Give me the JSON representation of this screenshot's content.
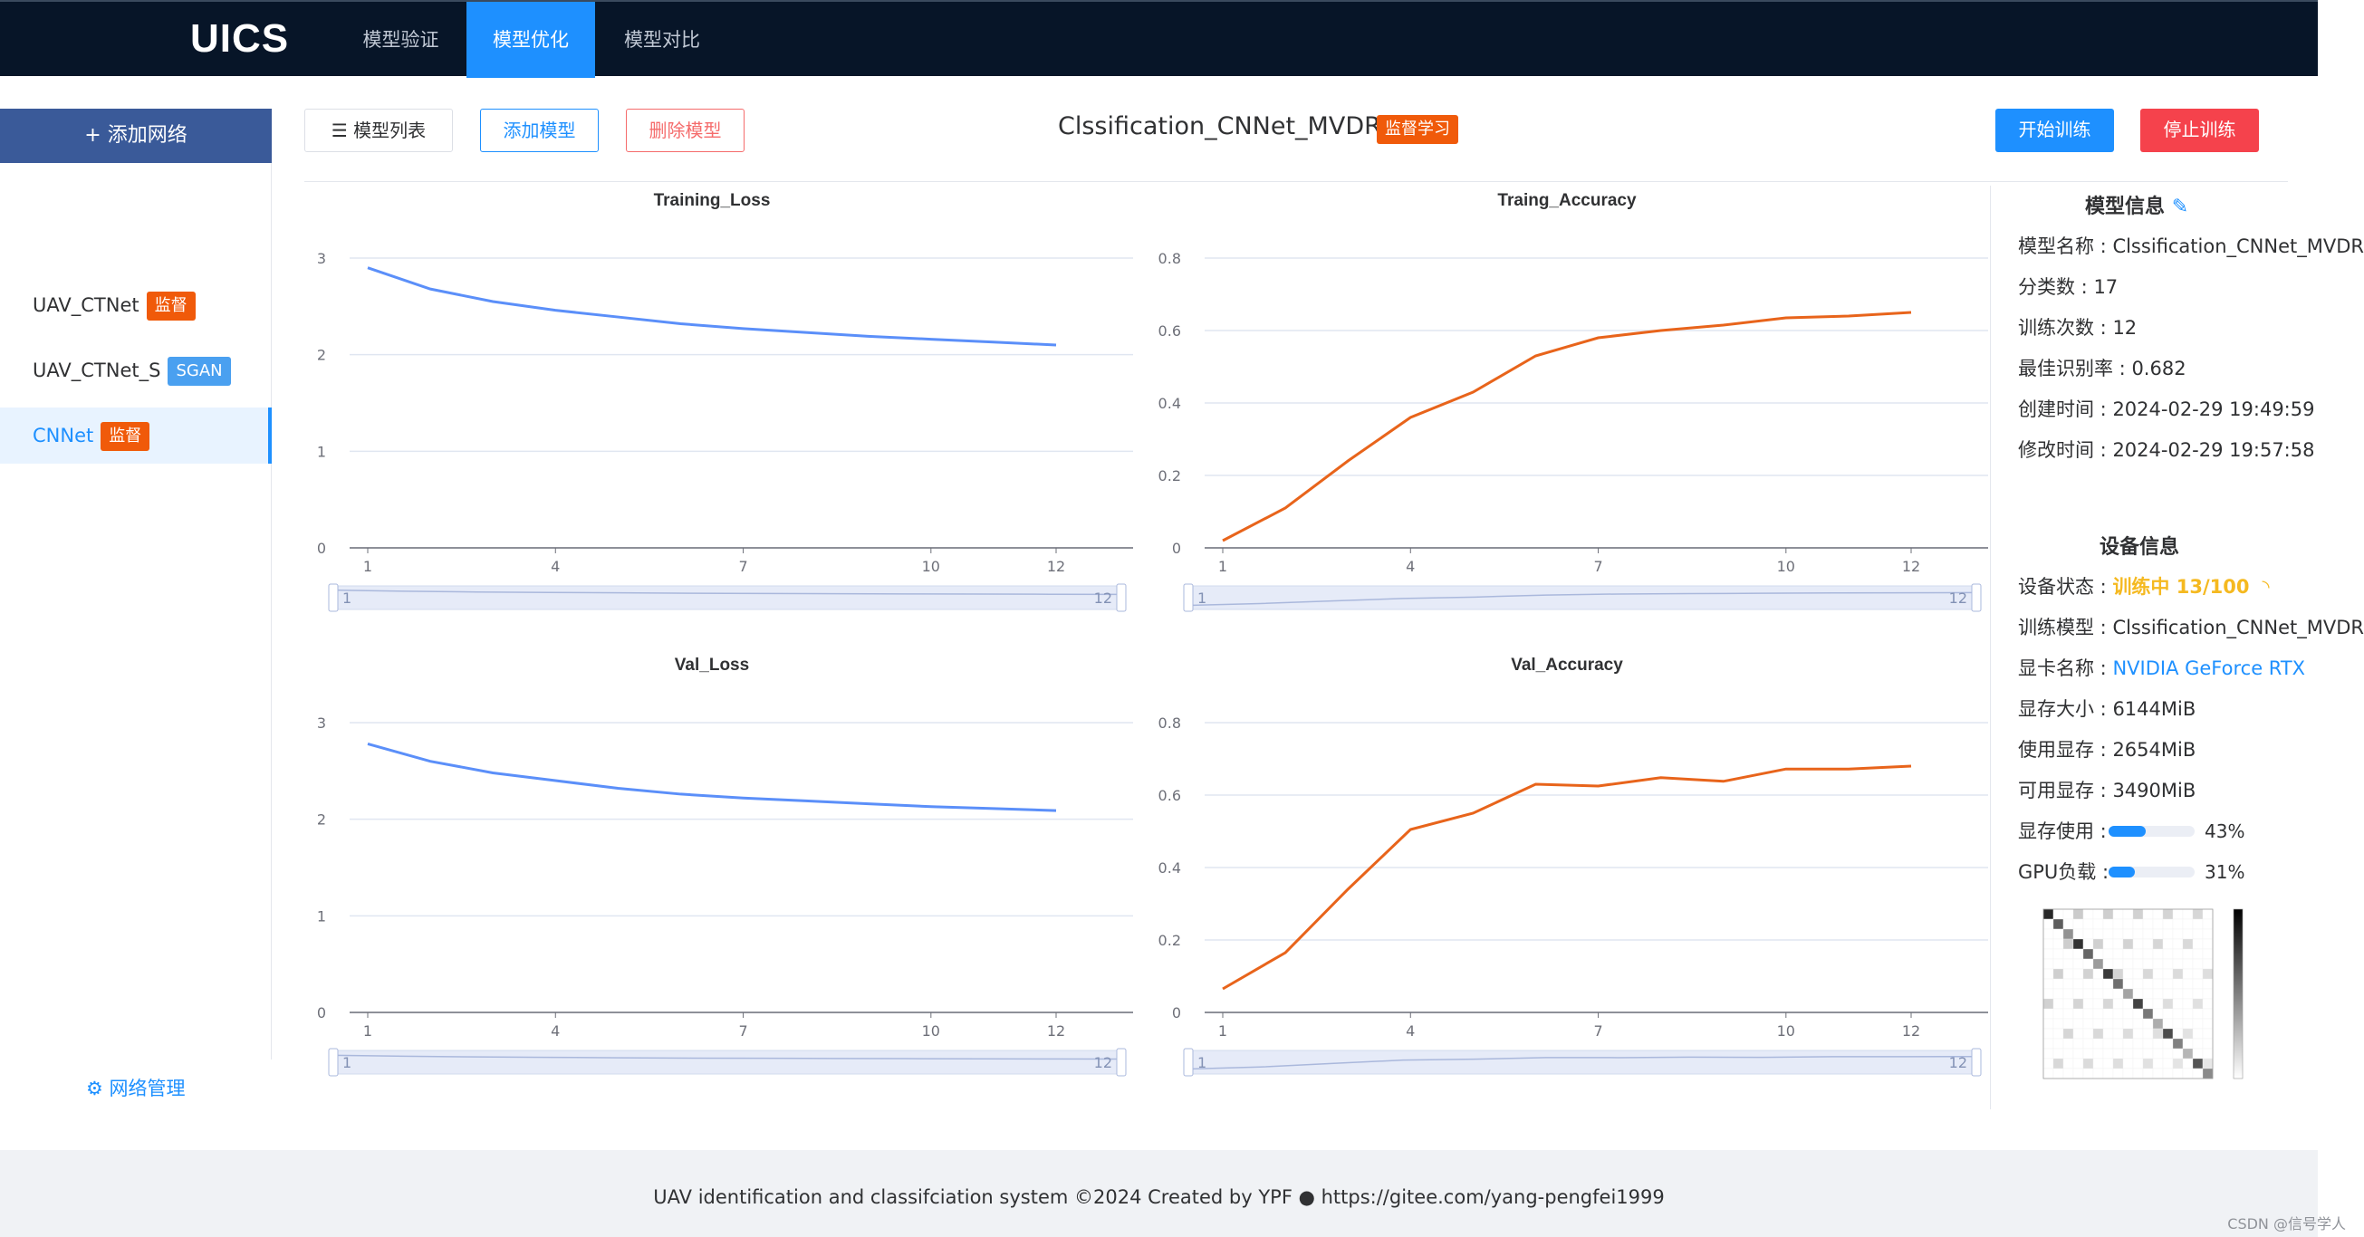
{
  "app": {
    "logo": "UICS",
    "nav_tabs": [
      {
        "label": "模型验证"
      },
      {
        "label": "模型优化"
      },
      {
        "label": "模型对比"
      }
    ]
  },
  "sidebar": {
    "add_label": "+ 添加网络",
    "items": [
      {
        "name": "UAV_CTNet",
        "tag": "监督"
      },
      {
        "name": "UAV_CTNet_S",
        "tag": "SGAN"
      },
      {
        "name": "CNNet",
        "tag": "监督"
      }
    ],
    "manage_label": "网络管理"
  },
  "toolbar": {
    "list_label": "模型列表",
    "add_label": "添加模型",
    "delete_label": "删除模型",
    "start_label": "开始训练",
    "stop_label": "停止训练",
    "model_title": "Clssification_CNNet_MVDR",
    "model_tag": "监督学习"
  },
  "chart_data": [
    {
      "type": "line",
      "title": "Training_Loss",
      "x": [
        1,
        2,
        3,
        4,
        5,
        6,
        7,
        8,
        9,
        10,
        11,
        12
      ],
      "xticks": [
        1,
        4,
        7,
        10,
        12
      ],
      "yticks": [
        0,
        1,
        2,
        3
      ],
      "ylim": [
        0,
        3
      ],
      "color": "#5b8ff9",
      "values": [
        2.9,
        2.68,
        2.55,
        2.46,
        2.39,
        2.32,
        2.27,
        2.23,
        2.19,
        2.16,
        2.13,
        2.1
      ],
      "zoom_range": [
        "1",
        "12"
      ]
    },
    {
      "type": "line",
      "title": "Traing_Accuracy",
      "x": [
        1,
        2,
        3,
        4,
        5,
        6,
        7,
        8,
        9,
        10,
        11,
        12
      ],
      "xticks": [
        1,
        4,
        7,
        10,
        12
      ],
      "yticks": [
        0,
        0.2,
        0.4,
        0.6,
        0.8
      ],
      "ylim": [
        0,
        0.8
      ],
      "color": "#e8641b",
      "values": [
        0.02,
        0.11,
        0.24,
        0.36,
        0.43,
        0.53,
        0.58,
        0.6,
        0.615,
        0.635,
        0.64,
        0.65
      ],
      "zoom_range": [
        "1",
        "12"
      ]
    },
    {
      "type": "line",
      "title": "Val_Loss",
      "x": [
        1,
        2,
        3,
        4,
        5,
        6,
        7,
        8,
        9,
        10,
        11,
        12
      ],
      "xticks": [
        1,
        4,
        7,
        10,
        12
      ],
      "yticks": [
        0,
        1,
        2,
        3
      ],
      "ylim": [
        0,
        3
      ],
      "color": "#5b8ff9",
      "values": [
        2.78,
        2.6,
        2.48,
        2.4,
        2.32,
        2.26,
        2.22,
        2.19,
        2.16,
        2.13,
        2.11,
        2.09
      ],
      "zoom_range": [
        "1",
        "12"
      ]
    },
    {
      "type": "line",
      "title": "Val_Accuracy",
      "x": [
        1,
        2,
        3,
        4,
        5,
        6,
        7,
        8,
        9,
        10,
        11,
        12
      ],
      "xticks": [
        1,
        4,
        7,
        10,
        12
      ],
      "yticks": [
        0,
        0.2,
        0.4,
        0.6,
        0.8
      ],
      "ylim": [
        0,
        0.8
      ],
      "color": "#e8641b",
      "values": [
        0.065,
        0.165,
        0.34,
        0.505,
        0.55,
        0.63,
        0.625,
        0.648,
        0.638,
        0.672,
        0.672,
        0.68
      ],
      "zoom_range": [
        "1",
        "12"
      ]
    }
  ],
  "model_info": {
    "title": "模型信息",
    "rows": [
      {
        "label": "模型名称 : ",
        "value": "Clssification_CNNet_MVDR"
      },
      {
        "label": "分类数 : ",
        "value": "17"
      },
      {
        "label": "训练次数 : ",
        "value": "12"
      },
      {
        "label": "最佳识别率 : ",
        "value": "0.682"
      },
      {
        "label": "创建时间 : ",
        "value": "2024-02-29 19:49:59"
      },
      {
        "label": "修改时间 : ",
        "value": "2024-02-29 19:57:58"
      }
    ]
  },
  "device_info": {
    "title": "设备信息",
    "status_label": "设备状态 : ",
    "status_value": "训练中 13/100",
    "model_label": "训练模型 : ",
    "model_value": "Clssification_CNNet_MVDR",
    "gpu_label": "显卡名称 : ",
    "gpu_value": "NVIDIA GeForce RTX",
    "mem_label": "显存大小 : ",
    "mem_value": "6144MiB",
    "used_label": "使用显存 : ",
    "used_value": "2654MiB",
    "free_label": "可用显存 : ",
    "free_value": "3490MiB",
    "mem_usage_label": "显存使用 : ",
    "mem_usage_pct": 43,
    "mem_usage_text": "43%",
    "gpu_load_label": "GPU负载 : ",
    "gpu_load_pct": 31,
    "gpu_load_text": "31%"
  },
  "footer": {
    "text": "UAV identification and classifciation system ©2024 Created by YPF",
    "link": "https://gitee.com/yang-pengfei1999",
    "watermark": "CSDN @信号学人"
  },
  "colors": {
    "nav_bg": "#071528",
    "accent": "#1e90ff",
    "danger": "#f5424c",
    "tag_orange": "#f05a0a",
    "loss_line": "#5b8ff9",
    "acc_line": "#e8641b"
  }
}
